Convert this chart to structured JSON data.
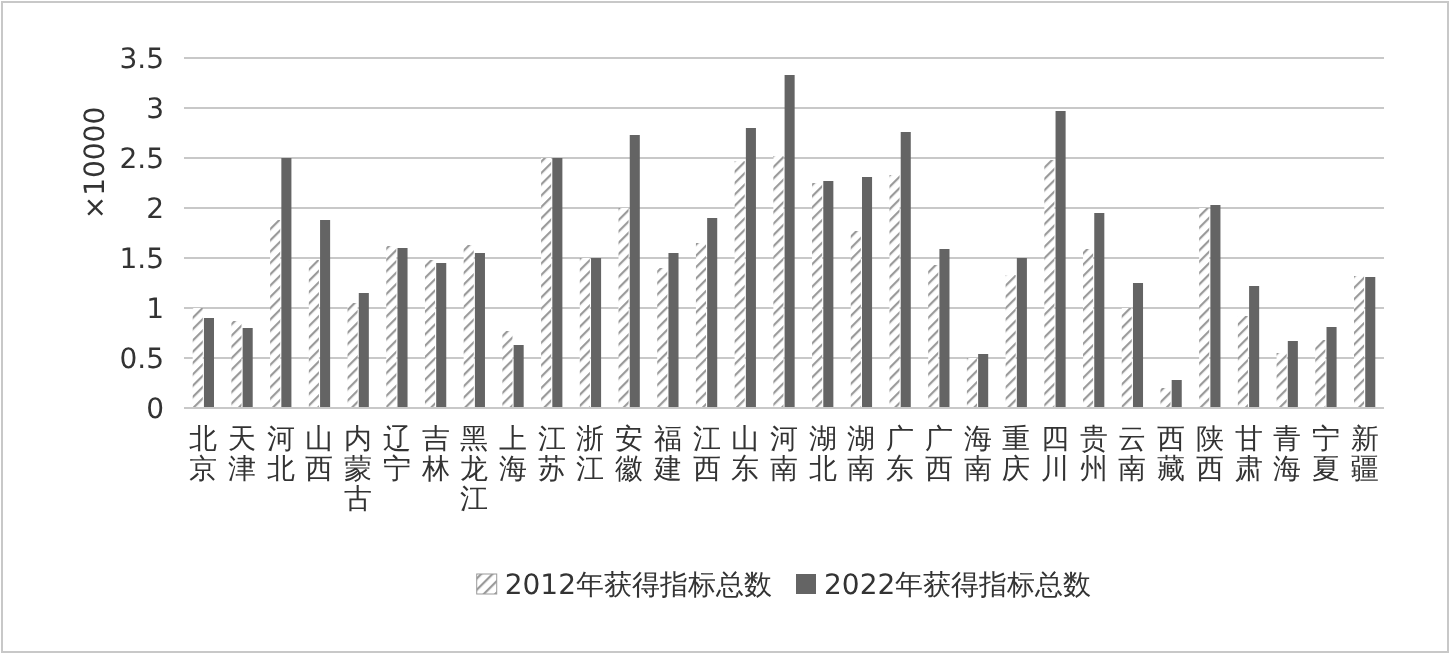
{
  "chart_data": {
    "type": "bar",
    "ylabel": "×10000",
    "categories": [
      "北京",
      "天津",
      "河北",
      "山西",
      "内蒙古",
      "辽宁",
      "吉林",
      "黑龙江",
      "上海",
      "江苏",
      "浙江",
      "安徽",
      "福建",
      "江西",
      "山东",
      "河南",
      "湖北",
      "湖南",
      "广东",
      "广西",
      "海南",
      "重庆",
      "四川",
      "贵州",
      "云南",
      "西藏",
      "陕西",
      "甘肃",
      "青海",
      "宁夏",
      "新疆"
    ],
    "series": [
      {
        "name": "2012年获得指标总数",
        "color": "#9a9a9a",
        "values": [
          1.0,
          0.87,
          1.88,
          1.48,
          1.05,
          1.62,
          1.48,
          1.63,
          0.77,
          2.5,
          1.5,
          2.0,
          1.4,
          1.65,
          2.47,
          2.52,
          2.25,
          1.77,
          2.33,
          1.43,
          0.5,
          1.33,
          2.48,
          1.59,
          1.0,
          0.2,
          2.0,
          0.92,
          0.55,
          0.68,
          1.32
        ]
      },
      {
        "name": "2022年获得指标总数",
        "color": "#646464",
        "values": [
          0.9,
          0.8,
          2.5,
          1.88,
          1.15,
          1.6,
          1.45,
          1.55,
          0.63,
          2.5,
          1.5,
          2.73,
          1.55,
          1.9,
          2.8,
          3.33,
          2.27,
          2.31,
          2.76,
          1.59,
          0.54,
          1.5,
          2.97,
          1.95,
          1.25,
          0.28,
          2.03,
          1.22,
          0.67,
          0.81,
          1.31
        ]
      }
    ],
    "ylim": [
      0,
      3.5
    ],
    "yticks": [
      0,
      0.5,
      1,
      1.5,
      2,
      2.5,
      3,
      3.5
    ],
    "grid": "y",
    "legend": "bottom"
  }
}
